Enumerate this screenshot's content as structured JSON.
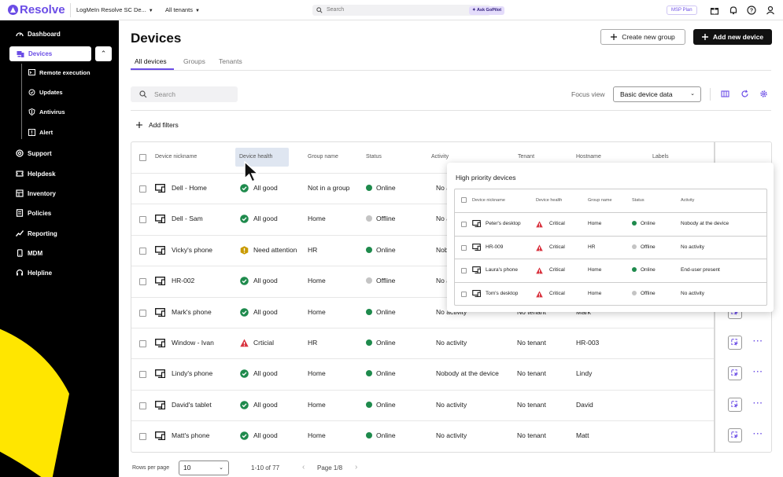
{
  "topbar": {
    "brand": "Resolve",
    "account": "LogMeIn Resolve SC De...",
    "tenants": "All tenants",
    "search_placeholder": "Search",
    "gopilot": "Ask GoPilot",
    "plan": "MSP Plan"
  },
  "sidebar": {
    "dashboard": "Dashboard",
    "devices": "Devices",
    "sub": [
      "Remote execution",
      "Updates",
      "Antivirus",
      "Alert"
    ],
    "items": [
      "Support",
      "Helpdesk",
      "Inventory",
      "Policies",
      "Reporting",
      "MDM",
      "Helpline"
    ]
  },
  "main": {
    "title": "Devices",
    "create_group": "Create new group",
    "add_device": "Add new device",
    "tabs": [
      "All devices",
      "Groups",
      "Tenants"
    ],
    "search_placeholder": "Search",
    "focus_label": "Focus view",
    "focus_value": "Basic device data",
    "add_filters": "Add filters"
  },
  "table": {
    "headers": [
      "Device nickname",
      "Device health",
      "Group name",
      "Status",
      "Activity",
      "Tenant",
      "Hostname",
      "Labels"
    ],
    "rows": [
      {
        "name": "Dell - Home",
        "health": "All good",
        "health_type": "good",
        "group": "Not in a group",
        "status": "Online",
        "activity": "No a",
        "tenant": "",
        "hostname": ""
      },
      {
        "name": "Dell - Sam",
        "health": "All good",
        "health_type": "good",
        "group": "Home",
        "status": "Offline",
        "activity": "No a",
        "tenant": "",
        "hostname": ""
      },
      {
        "name": "Vicky's phone",
        "health": "Need attention",
        "health_type": "warning",
        "group": "HR",
        "status": "Online",
        "activity": "Nob",
        "tenant": "",
        "hostname": ""
      },
      {
        "name": "HR-002",
        "health": "All good",
        "health_type": "good",
        "group": "Home",
        "status": "Offline",
        "activity": "No a",
        "tenant": "",
        "hostname": ""
      },
      {
        "name": "Mark's phone",
        "health": "All good",
        "health_type": "good",
        "group": "Home",
        "status": "Online",
        "activity": "No activity",
        "tenant": "No tenant",
        "hostname": "Mark"
      },
      {
        "name": "Window - Ivan",
        "health": "Crticial",
        "health_type": "critical",
        "group": "HR",
        "status": "Online",
        "activity": "No activity",
        "tenant": "No tenant",
        "hostname": "HR-003"
      },
      {
        "name": "Lindy's phone",
        "health": "All good",
        "health_type": "good",
        "group": "Home",
        "status": "Online",
        "activity": "Nobody at the device",
        "tenant": "No tenant",
        "hostname": "Lindy"
      },
      {
        "name": "David's tablet",
        "health": "All good",
        "health_type": "good",
        "group": "Home",
        "status": "Online",
        "activity": "No activity",
        "tenant": "No tenant",
        "hostname": "David"
      },
      {
        "name": "Matt's phone",
        "health": "All good",
        "health_type": "good",
        "group": "Home",
        "status": "Online",
        "activity": "No activity",
        "tenant": "No tenant",
        "hostname": "Matt"
      }
    ]
  },
  "popup": {
    "title": "High priority devices",
    "headers": [
      "Device nickname",
      "Device health",
      "Group name",
      "Status",
      "Activity"
    ],
    "rows": [
      {
        "name": "Peter's desktop",
        "health": "Critical",
        "group": "Home",
        "status": "Online",
        "activity": "Nobody at the device"
      },
      {
        "name": "HR-009",
        "health": "Critical",
        "group": "HR",
        "status": "Offline",
        "activity": "No activity"
      },
      {
        "name": "Laura's phone",
        "health": "Critical",
        "group": "Home",
        "status": "Online",
        "activity": "End-user present"
      },
      {
        "name": "Tom's desktop",
        "health": "Critical",
        "group": "Home",
        "status": "Offline",
        "activity": "No activity"
      }
    ]
  },
  "footer": {
    "rows_per_page_label": "Rows per page",
    "rows_per_page": "10",
    "range": "1-10 of 77",
    "page": "Page 1/8"
  },
  "colors": {
    "accent": "#6b4de6",
    "online": "#1e8a4c",
    "offline": "#c4c4c4",
    "critical": "#d9333f",
    "warning": "#c99a00",
    "good": "#1e8a4c",
    "yellow": "#ffe600"
  }
}
